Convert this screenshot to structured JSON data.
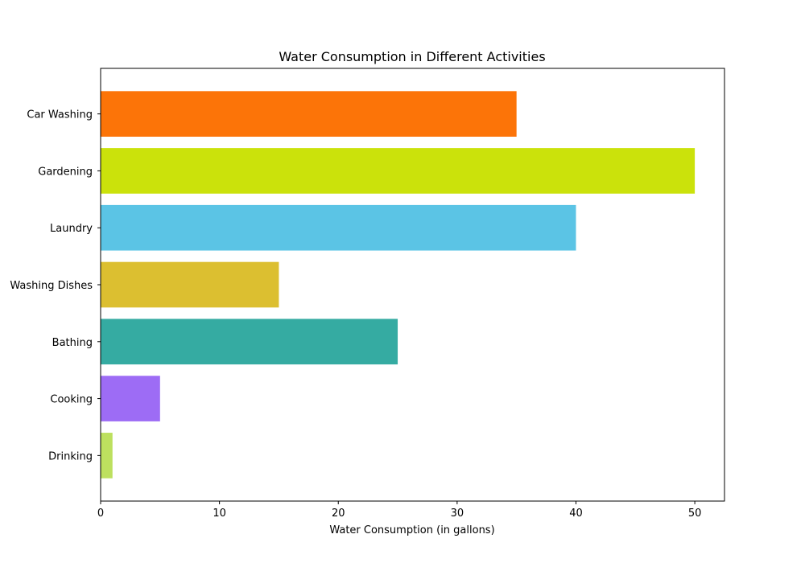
{
  "chart_data": {
    "type": "bar",
    "orientation": "horizontal",
    "title": "Water Consumption in Different Activities",
    "xlabel": "Water Consumption (in gallons)",
    "ylabel": "",
    "xlim": [
      0,
      52.5
    ],
    "xticks": [
      0,
      10,
      20,
      30,
      40,
      50
    ],
    "grid": false,
    "categories": [
      "Drinking",
      "Cooking",
      "Bathing",
      "Washing Dishes",
      "Laundry",
      "Gardening",
      "Car Washing"
    ],
    "values": [
      1,
      5,
      25,
      15,
      40,
      50,
      35
    ],
    "colors": [
      "#bde05f",
      "#9d6cf5",
      "#35aba2",
      "#dcbf30",
      "#5bc4e5",
      "#cbe20b",
      "#fc7408"
    ]
  }
}
